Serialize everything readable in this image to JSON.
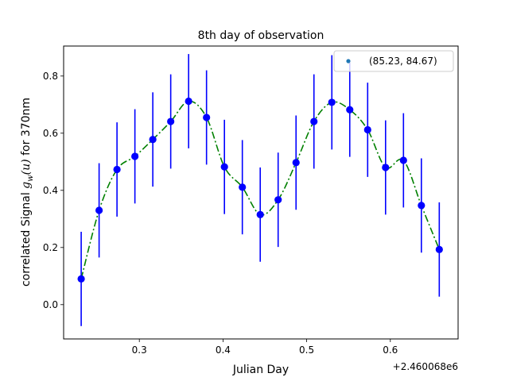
{
  "chart_data": {
    "type": "line",
    "title": "8th day of observation",
    "xlabel": "Julian Day",
    "ylabel_prefix": "correlated Signal ",
    "ylabel_math_g": "g",
    "ylabel_math_sub": "w",
    "ylabel_math_arg": "(u)",
    "ylabel_suffix": " for 370nm",
    "x_offset_label": "+2.460068e6",
    "xlim": [
      0.2095,
      0.681
    ],
    "ylim": [
      -0.12,
      0.905
    ],
    "xticks": [
      0.3,
      0.4,
      0.5,
      0.6
    ],
    "xtick_labels": [
      "0.3",
      "0.4",
      "0.5",
      "0.6"
    ],
    "yticks": [
      0.0,
      0.2,
      0.4,
      0.6,
      0.8
    ],
    "ytick_labels": [
      "0.0",
      "0.2",
      "0.4",
      "0.6",
      "0.8"
    ],
    "grid": false,
    "legend_position": "top-right",
    "legend_entry": "(85.23, 84.67)",
    "legend_marker_color": "#1f77b4",
    "line_color": "#008000",
    "marker_color": "#0000ff",
    "error_color": "#0000ff",
    "error": 0.165,
    "x": [
      0.2305,
      0.2519,
      0.2733,
      0.2947,
      0.3161,
      0.3375,
      0.3589,
      0.3803,
      0.4017,
      0.4231,
      0.4445,
      0.4659,
      0.4873,
      0.5087,
      0.5301,
      0.5515,
      0.5729,
      0.5943,
      0.6157,
      0.6371,
      0.6585
    ],
    "y": [
      0.09,
      0.33,
      0.473,
      0.519,
      0.578,
      0.641,
      0.712,
      0.655,
      0.482,
      0.411,
      0.315,
      0.367,
      0.497,
      0.641,
      0.708,
      0.682,
      0.612,
      0.48,
      0.505,
      0.347,
      0.193
    ]
  }
}
